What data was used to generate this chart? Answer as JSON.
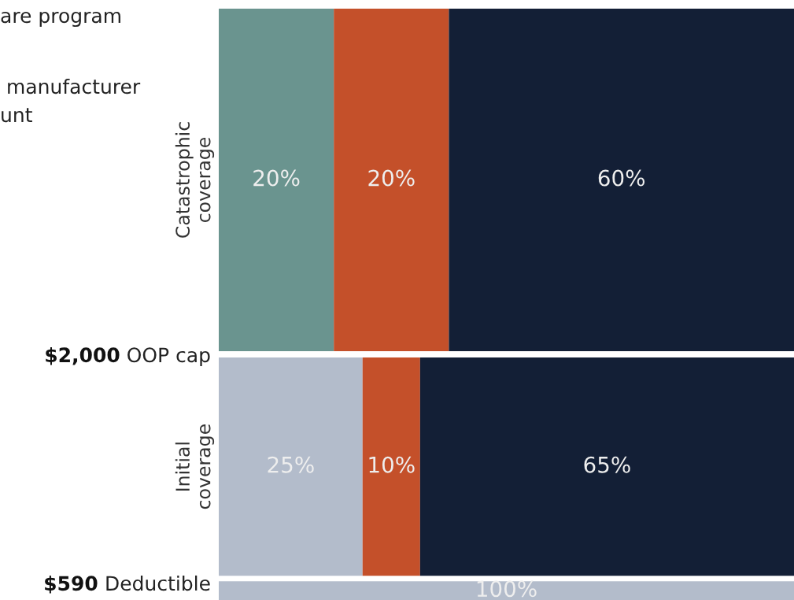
{
  "chart_data": {
    "type": "bar",
    "orientation": "horizontal",
    "stacked": true,
    "categories": [
      "Catastrophic\ncoverage",
      "Initial\ncoverage",
      null
    ],
    "series": [
      {
        "color": "#b3bccb",
        "values": [
          null,
          25,
          100
        ],
        "value_labels": [
          null,
          "25%",
          "100%"
        ]
      },
      {
        "color": "#6a948f",
        "values": [
          20,
          null,
          null
        ],
        "value_labels": [
          "20%",
          null,
          null
        ]
      },
      {
        "color": "#c4502a",
        "values": [
          20,
          10,
          null
        ],
        "value_labels": [
          "20%",
          "10%",
          null
        ]
      },
      {
        "color": "#131f36",
        "values": [
          60,
          65,
          null
        ],
        "value_labels": [
          "60%",
          "65%",
          null
        ]
      }
    ],
    "tick_labels": "y",
    "grid": false,
    "legend": false,
    "annotations": [
      "are program",
      " manufacturer",
      "unt",
      "$2,000 OOP cap",
      "$590 Deductible"
    ]
  }
}
